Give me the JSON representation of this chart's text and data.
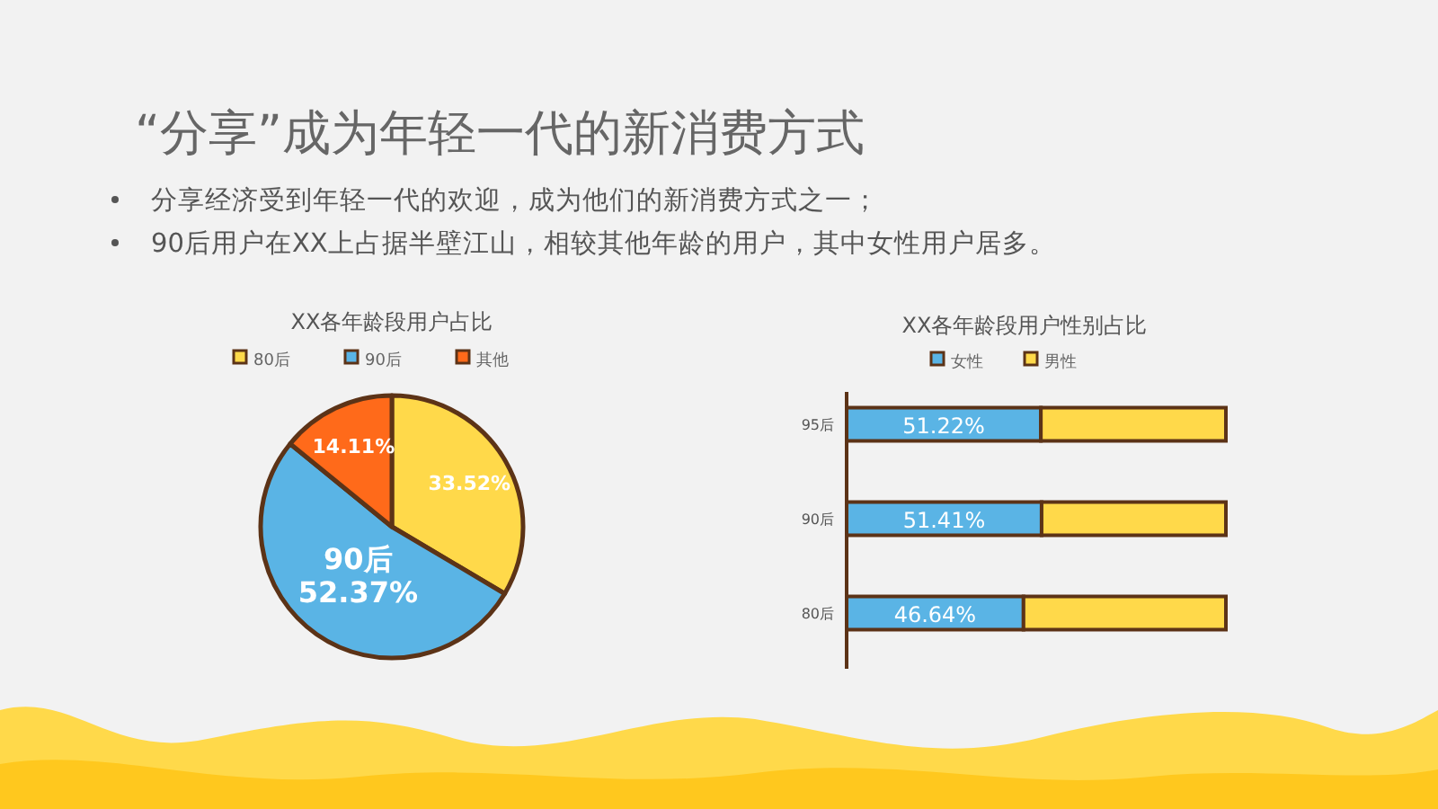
{
  "chart_data": [
    {
      "type": "other",
      "title": "“分享”成为年轻一代的新消费方式",
      "annotations": [
        "分享经济受到年轻一代的欢迎，成为他们的新消费方式之一；",
        "90后用户在XX上占据半壁江山，相较其他年龄的用户，其中女性用户居多。"
      ]
    },
    {
      "type": "pie",
      "title": "XX各年龄段用户占比",
      "categories": [
        "80后",
        "90后",
        "其他"
      ],
      "values": [
        33.52,
        52.37,
        14.11
      ],
      "colors": [
        "#ffd94a",
        "#5ab4e5",
        "#ff6a1a"
      ],
      "value_labels": [
        "33.52%",
        "90后\n52.37%",
        "14.11%"
      ],
      "legend": "top"
    },
    {
      "type": "bar",
      "title": "XX各年龄段用户性别占比",
      "orientation": "horizontal",
      "stacked": true,
      "categories": [
        "95后",
        "90后",
        "80后"
      ],
      "series": [
        {
          "name": "女性",
          "color": "#5ab4e5",
          "values": [
            51.22,
            51.41,
            46.64
          ],
          "value_labels": [
            "51.22%",
            "51.41%",
            "46.64%"
          ]
        },
        {
          "name": "男性",
          "color": "#ffd94a",
          "values": [
            48.78,
            48.59,
            53.36
          ]
        }
      ],
      "legend": "top"
    }
  ]
}
